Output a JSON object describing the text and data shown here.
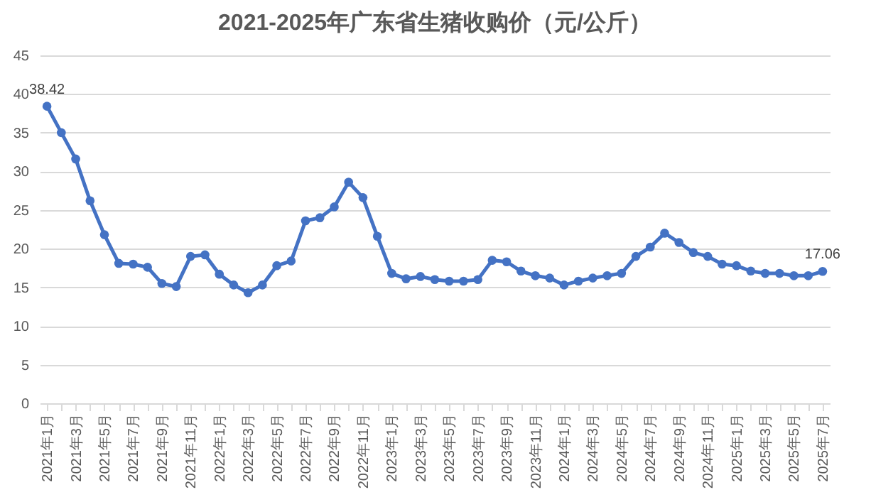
{
  "chart_data": {
    "type": "line",
    "title": "2021-2025年广东省生猪收购价（元/公斤）",
    "categories": [
      "2021年1月",
      null,
      "2021年3月",
      null,
      "2021年5月",
      null,
      "2021年7月",
      null,
      "2021年9月",
      null,
      "2021年11月",
      null,
      "2022年1月",
      null,
      "2022年3月",
      null,
      "2022年5月",
      null,
      "2022年7月",
      null,
      "2022年9月",
      null,
      "2022年11月",
      null,
      "2023年1月",
      null,
      "2023年3月",
      null,
      "2023年5月",
      null,
      "2023年7月",
      null,
      "2023年9月",
      null,
      "2023年11月",
      null,
      "2024年1月",
      null,
      "2024年3月",
      null,
      "2024年5月",
      null,
      "2024年7月",
      null,
      "2024年9月",
      null,
      "2024年11月",
      null,
      "2025年1月",
      null,
      "2025年3月",
      null,
      "2025年5月",
      null,
      "2025年7月"
    ],
    "series": [
      {
        "color": "#4472c4",
        "values": [
          38.42,
          35.0,
          31.6,
          26.2,
          21.8,
          18.1,
          18.0,
          17.6,
          15.5,
          15.1,
          19.0,
          19.2,
          16.7,
          15.3,
          14.3,
          15.3,
          17.8,
          18.4,
          23.6,
          24.0,
          25.4,
          28.6,
          26.6,
          21.6,
          16.8,
          16.1,
          16.4,
          16.0,
          15.8,
          15.8,
          16.0,
          18.5,
          18.3,
          17.1,
          16.5,
          16.2,
          15.3,
          15.8,
          16.2,
          16.5,
          16.8,
          19.0,
          20.2,
          22.0,
          20.8,
          19.5,
          19.0,
          18.0,
          17.8,
          17.1,
          16.8,
          16.8,
          16.5,
          16.5,
          17.06
        ],
        "value_labels": [
          "38.42",
          null,
          null,
          null,
          null,
          null,
          null,
          null,
          null,
          null,
          null,
          null,
          null,
          null,
          null,
          null,
          null,
          null,
          null,
          null,
          null,
          null,
          null,
          null,
          null,
          null,
          null,
          null,
          null,
          null,
          null,
          null,
          null,
          null,
          null,
          null,
          null,
          null,
          null,
          null,
          null,
          null,
          null,
          null,
          null,
          null,
          null,
          null,
          null,
          null,
          null,
          null,
          null,
          null,
          "17.06"
        ]
      }
    ],
    "ylim": [
      0,
      45
    ],
    "yticks": [
      0,
      5,
      10,
      15,
      20,
      25,
      30,
      35,
      40,
      45
    ],
    "grid": "y",
    "marker": "circle",
    "line_style": "solid"
  }
}
